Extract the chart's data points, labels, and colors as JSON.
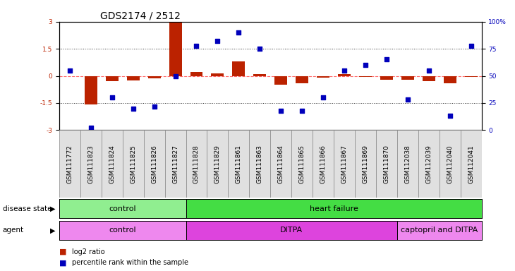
{
  "title": "GDS2174 / 2512",
  "samples": [
    "GSM111772",
    "GSM111823",
    "GSM111824",
    "GSM111825",
    "GSM111826",
    "GSM111827",
    "GSM111828",
    "GSM111829",
    "GSM111861",
    "GSM111863",
    "GSM111864",
    "GSM111865",
    "GSM111866",
    "GSM111867",
    "GSM111869",
    "GSM111870",
    "GSM112038",
    "GSM112039",
    "GSM112040",
    "GSM112041"
  ],
  "log2_ratio": [
    0.0,
    -1.6,
    -0.3,
    -0.25,
    -0.15,
    3.0,
    0.2,
    0.15,
    0.8,
    0.1,
    -0.5,
    -0.4,
    -0.1,
    0.1,
    -0.05,
    -0.2,
    -0.2,
    -0.3,
    -0.4,
    -0.05
  ],
  "percentile_rank": [
    55,
    2,
    30,
    20,
    22,
    50,
    78,
    82,
    90,
    75,
    18,
    18,
    30,
    55,
    60,
    65,
    28,
    55,
    13,
    78
  ],
  "disease_state_groups": [
    {
      "label": "control",
      "start": 0,
      "end": 6,
      "color": "#90EE90"
    },
    {
      "label": "heart failure",
      "start": 6,
      "end": 20,
      "color": "#44DD44"
    }
  ],
  "agent_groups": [
    {
      "label": "control",
      "start": 0,
      "end": 6,
      "color": "#EE88EE"
    },
    {
      "label": "DITPA",
      "start": 6,
      "end": 16,
      "color": "#DD44DD"
    },
    {
      "label": "captopril and DITPA",
      "start": 16,
      "end": 20,
      "color": "#EE88EE"
    }
  ],
  "ylim_left": [
    -3,
    3
  ],
  "ylim_right": [
    0,
    100
  ],
  "bar_color": "#BB2200",
  "dot_color": "#0000BB",
  "zero_line_color": "#FF6666",
  "dotted_line_color": "#333333",
  "background_color": "#FFFFFF",
  "title_fontsize": 10,
  "tick_fontsize": 6.5,
  "label_fontsize": 7.5,
  "ann_fontsize": 8
}
